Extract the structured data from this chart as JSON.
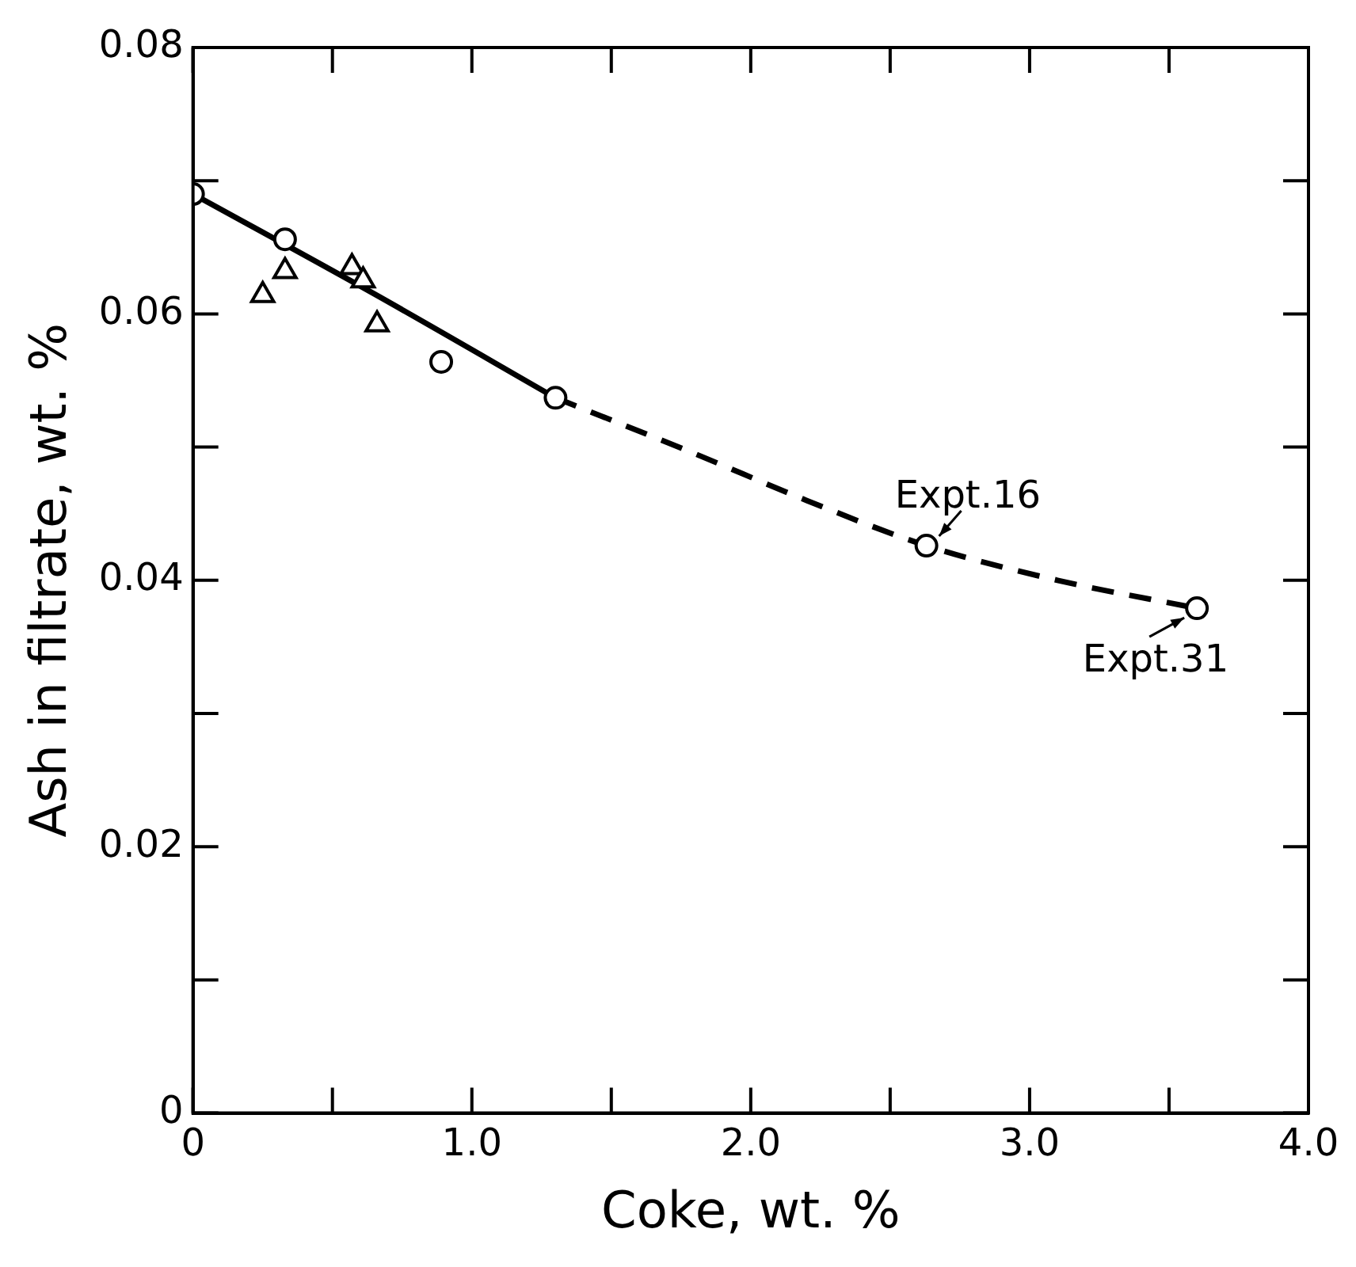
{
  "chart_data": {
    "type": "scatter",
    "xlabel": "Coke, wt. %",
    "ylabel": "Ash in filtrate, wt. %",
    "xlim": [
      0,
      4.0
    ],
    "xticks": [
      {
        "value": 0,
        "label": "0"
      },
      {
        "value": 0.5,
        "label": null
      },
      {
        "value": 1,
        "label": "1.0"
      },
      {
        "value": 1.5,
        "label": null
      },
      {
        "value": 2,
        "label": "2.0"
      },
      {
        "value": 2.5,
        "label": null
      },
      {
        "value": 3,
        "label": "3.0"
      },
      {
        "value": 3.5,
        "label": null
      },
      {
        "value": 4,
        "label": "4.0"
      }
    ],
    "ylim": [
      0,
      0.08
    ],
    "yticks": [
      0,
      {
        "value": 0.01,
        "label": null
      },
      0.02,
      {
        "value": 0.03,
        "label": null
      },
      0.04,
      {
        "value": 0.05,
        "label": null
      },
      0.06,
      {
        "value": 0.07,
        "label": null
      },
      0.08
    ],
    "grid": false,
    "legend": false,
    "series": [
      {
        "type": "line",
        "color": "#000000",
        "line_style": "solid",
        "marker": "none",
        "x": [
          0,
          0.65,
          1.3
        ],
        "values": [
          0.069,
          0.0615,
          0.0537
        ]
      },
      {
        "type": "line",
        "color": "#000000",
        "line_style": "dashed",
        "marker": "none",
        "x": [
          1.3,
          1.8,
          2.2,
          2.63,
          3.1,
          3.6
        ],
        "values": [
          0.0537,
          0.0495,
          0.046,
          0.0426,
          0.04,
          0.0379
        ]
      },
      {
        "type": "scatter",
        "color": "#000000",
        "marker": "circle",
        "x": [
          0,
          0.33,
          0.89,
          1.3,
          2.63,
          3.6
        ],
        "values": [
          0.069,
          0.0656,
          0.0564,
          0.0537,
          0.0426,
          0.0379
        ]
      },
      {
        "type": "scatter",
        "color": "#000000",
        "marker": "triangle",
        "x": [
          0.25,
          0.33,
          0.57,
          0.61,
          0.66
        ],
        "values": [
          0.0614,
          0.0632,
          0.0635,
          0.0625,
          0.0592
        ]
      }
    ],
    "annotations": [
      {
        "text": "Expt.16",
        "x": 2.63,
        "y": 0.0426
      },
      {
        "text": "Expt.31",
        "x": 3.6,
        "y": 0.0379
      }
    ]
  }
}
